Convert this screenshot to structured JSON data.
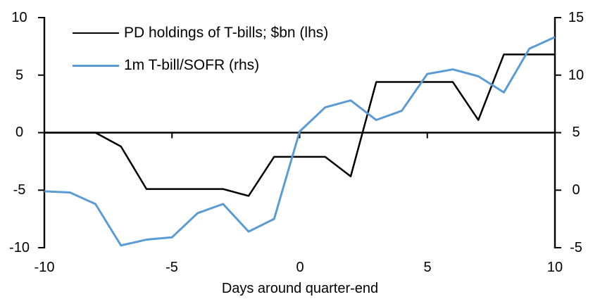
{
  "chart_data": {
    "type": "line",
    "title": "",
    "xlabel": "Days around quarter-end",
    "grid": false,
    "legend_position": "top-left",
    "x_lim": [
      -10,
      10
    ],
    "x_ticks": [
      -10,
      -5,
      0,
      5,
      10
    ],
    "left_axis": {
      "lim": [
        -10,
        10
      ],
      "ticks": [
        10,
        5,
        0,
        -5,
        -10
      ]
    },
    "right_axis": {
      "lim": [
        -5,
        15
      ],
      "ticks": [
        15,
        10,
        5,
        0,
        -5
      ]
    },
    "x": [
      -10,
      -9,
      -8,
      -7,
      -6,
      -5,
      -4,
      -3,
      -2,
      -1,
      0,
      1,
      2,
      3,
      4,
      5,
      6,
      7,
      8,
      9,
      10
    ],
    "series": [
      {
        "name": "PD holdings of T-bills; $bn (lhs)",
        "axis": "lhs",
        "color": "#000000",
        "values": [
          0.0,
          0.0,
          0.0,
          -1.2,
          -4.9,
          -4.9,
          -4.9,
          -4.9,
          -5.5,
          -2.1,
          -2.1,
          -2.1,
          -3.8,
          4.4,
          4.4,
          4.4,
          4.4,
          1.1,
          6.8,
          6.8,
          6.8
        ]
      },
      {
        "name": "1m T-bill/SOFR (rhs)",
        "axis": "rhs",
        "color": "#5B9BD5",
        "values": [
          -0.1,
          -0.2,
          -1.2,
          -4.8,
          -4.3,
          -4.1,
          -2.0,
          -1.2,
          -3.6,
          -2.5,
          5.1,
          7.2,
          7.8,
          6.1,
          6.9,
          10.1,
          10.5,
          9.9,
          8.5,
          12.3,
          13.3
        ]
      }
    ]
  }
}
